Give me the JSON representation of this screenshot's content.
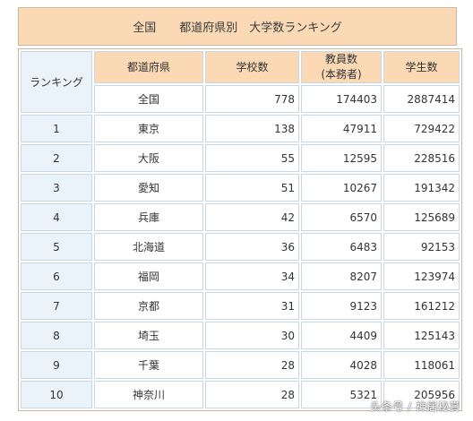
{
  "title": "全国　　都道府県別　大学数ランキング",
  "headers": {
    "rank": "ランキング",
    "prefecture": "都道府県",
    "schools": "学校数",
    "teachers_line1": "教員数",
    "teachers_line2": "(本務者)",
    "students": "学生数"
  },
  "national": {
    "prefecture": "全国",
    "schools": "778",
    "teachers": "174403",
    "students": "2887414"
  },
  "rows": [
    {
      "rank": "1",
      "prefecture": "東京",
      "schools": "138",
      "teachers": "47911",
      "students": "729422"
    },
    {
      "rank": "2",
      "prefecture": "大阪",
      "schools": "55",
      "teachers": "12595",
      "students": "228516"
    },
    {
      "rank": "3",
      "prefecture": "愛知",
      "schools": "51",
      "teachers": "10267",
      "students": "191342"
    },
    {
      "rank": "4",
      "prefecture": "兵庫",
      "schools": "42",
      "teachers": "6570",
      "students": "125689"
    },
    {
      "rank": "5",
      "prefecture": "北海道",
      "schools": "36",
      "teachers": "6483",
      "students": "92153"
    },
    {
      "rank": "6",
      "prefecture": "福岡",
      "schools": "34",
      "teachers": "8207",
      "students": "123974"
    },
    {
      "rank": "7",
      "prefecture": "京都",
      "schools": "31",
      "teachers": "9123",
      "students": "161212"
    },
    {
      "rank": "8",
      "prefecture": "埼玉",
      "schools": "30",
      "teachers": "4409",
      "students": "125143"
    },
    {
      "rank": "9",
      "prefecture": "千葉",
      "schools": "28",
      "teachers": "4028",
      "students": "118061"
    },
    {
      "rank": "10",
      "prefecture": "神奈川",
      "schools": "28",
      "teachers": "5321",
      "students": "205956"
    }
  ],
  "watermark": "头条号 / 神居秘賞"
}
